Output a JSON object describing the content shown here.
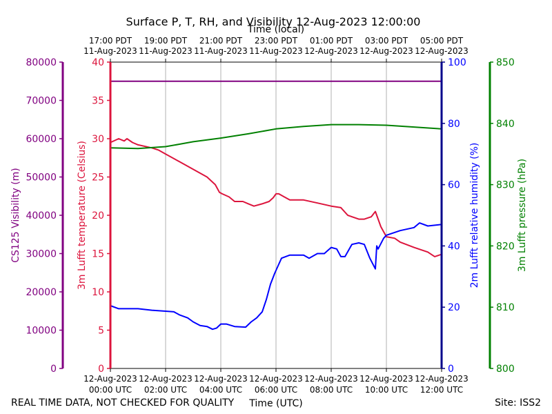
{
  "title": "Surface P, T, RH, and Visibility 12-Aug-2023 12:00:00",
  "top_axis_label": "Time (local)",
  "bottom_axis_label": "Time (UTC)",
  "footer_left": "REAL TIME DATA, NOT CHECKED FOR QUALITY",
  "footer_right": "Site: ISS2",
  "colors": {
    "visibility": "#800080",
    "temperature": "#dc143c",
    "humidity": "#0000ff",
    "humidity_axis": "#00008b",
    "pressure": "#008000",
    "grid": "#b0b0b0"
  },
  "chart_data": {
    "type": "line",
    "title": "Surface P, T, RH, and Visibility 12-Aug-2023 12:00:00",
    "x_unit": "hours UTC from 12-Aug-2023 00:00",
    "xlim": [
      0,
      12
    ],
    "bottom_ticks": [
      {
        "x": 0,
        "line1": "12-Aug-2023",
        "line2": "00:00 UTC"
      },
      {
        "x": 2,
        "line1": "12-Aug-2023",
        "line2": "02:00 UTC"
      },
      {
        "x": 4,
        "line1": "12-Aug-2023",
        "line2": "04:00 UTC"
      },
      {
        "x": 6,
        "line1": "12-Aug-2023",
        "line2": "06:00 UTC"
      },
      {
        "x": 8,
        "line1": "12-Aug-2023",
        "line2": "08:00 UTC"
      },
      {
        "x": 10,
        "line1": "12-Aug-2023",
        "line2": "10:00 UTC"
      },
      {
        "x": 12,
        "line1": "12-Aug-2023",
        "line2": "12:00 UTC"
      }
    ],
    "top_ticks": [
      {
        "x": 0,
        "line1": "17:00 PDT",
        "line2": "11-Aug-2023"
      },
      {
        "x": 2,
        "line1": "19:00 PDT",
        "line2": "11-Aug-2023"
      },
      {
        "x": 4,
        "line1": "21:00 PDT",
        "line2": "11-Aug-2023"
      },
      {
        "x": 6,
        "line1": "23:00 PDT",
        "line2": "11-Aug-2023"
      },
      {
        "x": 8,
        "line1": "01:00 PDT",
        "line2": "12-Aug-2023"
      },
      {
        "x": 10,
        "line1": "03:00 PDT",
        "line2": "12-Aug-2023"
      },
      {
        "x": 12,
        "line1": "05:00 PDT",
        "line2": "12-Aug-2023"
      }
    ],
    "axes": [
      {
        "key": "visibility",
        "label": "CS125 Visibility (m)",
        "ylim": [
          0,
          80000
        ],
        "ticks": [
          0,
          10000,
          20000,
          30000,
          40000,
          50000,
          60000,
          70000,
          80000
        ],
        "color": "#800080"
      },
      {
        "key": "temperature",
        "label": "3m Lufft temperature (Celsius)",
        "ylim": [
          0,
          40
        ],
        "ticks": [
          0,
          5,
          10,
          15,
          20,
          25,
          30,
          35,
          40
        ],
        "color": "#dc143c"
      },
      {
        "key": "humidity",
        "label": "2m Lufft relative humidity (%)",
        "ylim": [
          0,
          100
        ],
        "ticks": [
          0,
          20,
          40,
          60,
          80,
          100
        ],
        "color": "#0000ff"
      },
      {
        "key": "pressure",
        "label": "3m Lufft pressure (hPa)",
        "ylim": [
          800,
          850
        ],
        "ticks": [
          800,
          810,
          820,
          830,
          840,
          850
        ],
        "color": "#008000"
      }
    ],
    "grid": "vertical",
    "series": [
      {
        "axis": "visibility",
        "name": "CS125 Visibility",
        "x": [
          0,
          12
        ],
        "y": [
          75000,
          75000
        ]
      },
      {
        "axis": "temperature",
        "name": "3m Lufft temperature",
        "x": [
          0,
          0.3,
          0.5,
          0.6,
          0.8,
          1.0,
          1.5,
          1.75,
          2.0,
          2.5,
          3.0,
          3.5,
          3.8,
          3.95,
          4.05,
          4.3,
          4.5,
          4.8,
          5.0,
          5.2,
          5.5,
          5.75,
          5.9,
          6.0,
          6.1,
          6.3,
          6.5,
          7.0,
          7.5,
          8.0,
          8.35,
          8.6,
          9.0,
          9.2,
          9.45,
          9.6,
          9.8,
          10.0,
          10.3,
          10.5,
          11.0,
          11.5,
          11.75,
          12.0
        ],
        "y": [
          29.5,
          30.0,
          29.7,
          30.0,
          29.5,
          29.2,
          28.8,
          28.5,
          28.0,
          27.0,
          26.0,
          25.0,
          24.0,
          23.0,
          22.8,
          22.4,
          21.8,
          21.8,
          21.5,
          21.2,
          21.5,
          21.8,
          22.3,
          22.8,
          22.8,
          22.4,
          22.0,
          22.0,
          21.6,
          21.2,
          21.0,
          20.0,
          19.5,
          19.5,
          19.8,
          20.5,
          18.5,
          17.2,
          17.0,
          16.5,
          15.8,
          15.2,
          14.6,
          14.9
        ]
      },
      {
        "axis": "humidity",
        "name": "2m Lufft relative humidity",
        "x": [
          0,
          0.3,
          1.0,
          1.5,
          2.0,
          2.3,
          2.5,
          2.8,
          3.0,
          3.25,
          3.5,
          3.7,
          3.85,
          4.0,
          4.2,
          4.5,
          4.9,
          5.1,
          5.3,
          5.5,
          5.65,
          5.8,
          5.95,
          6.1,
          6.2,
          6.5,
          7.0,
          7.2,
          7.5,
          7.75,
          8.0,
          8.2,
          8.35,
          8.5,
          8.75,
          9.0,
          9.2,
          9.4,
          9.6,
          9.65,
          9.7,
          9.9,
          10.0,
          10.5,
          11.0,
          11.2,
          11.5,
          12.0
        ],
        "y": [
          20.5,
          19.5,
          19.5,
          19.0,
          18.7,
          18.5,
          17.5,
          16.5,
          15.2,
          14.0,
          13.7,
          12.8,
          13.2,
          14.5,
          14.5,
          13.7,
          13.5,
          15.2,
          16.5,
          18.5,
          22.5,
          27.5,
          31.0,
          34.0,
          36.0,
          37.0,
          37.0,
          36.0,
          37.5,
          37.5,
          39.5,
          39.0,
          36.5,
          36.5,
          40.5,
          41.0,
          40.5,
          36.0,
          32.5,
          40.0,
          39.0,
          42.5,
          43.5,
          45.0,
          46.0,
          47.5,
          46.5,
          47.0
        ]
      },
      {
        "axis": "pressure",
        "name": "3m Lufft pressure",
        "x": [
          0,
          1.0,
          2.0,
          2.5,
          3.0,
          4.0,
          5.0,
          6.0,
          7.0,
          8.0,
          9.0,
          10.0,
          11.0,
          12.0
        ],
        "y": [
          836.0,
          835.9,
          836.2,
          836.6,
          837.0,
          837.6,
          838.3,
          839.1,
          839.5,
          839.8,
          839.8,
          839.7,
          839.4,
          839.1
        ]
      }
    ]
  }
}
